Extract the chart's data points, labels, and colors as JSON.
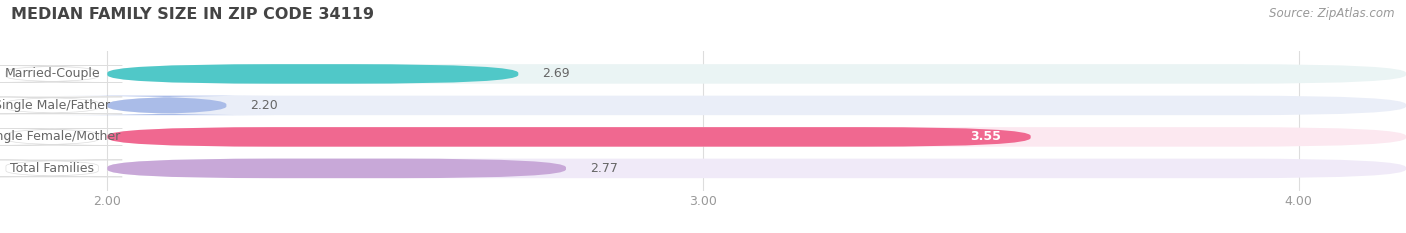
{
  "title": "MEDIAN FAMILY SIZE IN ZIP CODE 34119",
  "source": "Source: ZipAtlas.com",
  "categories": [
    "Married-Couple",
    "Single Male/Father",
    "Single Female/Mother",
    "Total Families"
  ],
  "values": [
    2.69,
    2.2,
    3.55,
    2.77
  ],
  "bar_colors": [
    "#50c8c8",
    "#aabce8",
    "#f06890",
    "#c8a8d8"
  ],
  "bar_bg_colors": [
    "#eaf4f4",
    "#eaeef8",
    "#fce8f0",
    "#f0eaf8"
  ],
  "xlim": [
    1.82,
    4.18
  ],
  "xstart": 2.0,
  "xticks": [
    2.0,
    3.0,
    4.0
  ],
  "value_label_inside": [
    false,
    false,
    true,
    false
  ],
  "title_fontsize": 11.5,
  "source_fontsize": 8.5,
  "tick_fontsize": 9,
  "label_fontsize": 9,
  "value_fontsize": 9,
  "bar_height": 0.62,
  "fig_bg_color": "#ffffff",
  "grid_color": "#dddddd",
  "label_box_color": "#ffffff",
  "label_text_color": "#666666"
}
